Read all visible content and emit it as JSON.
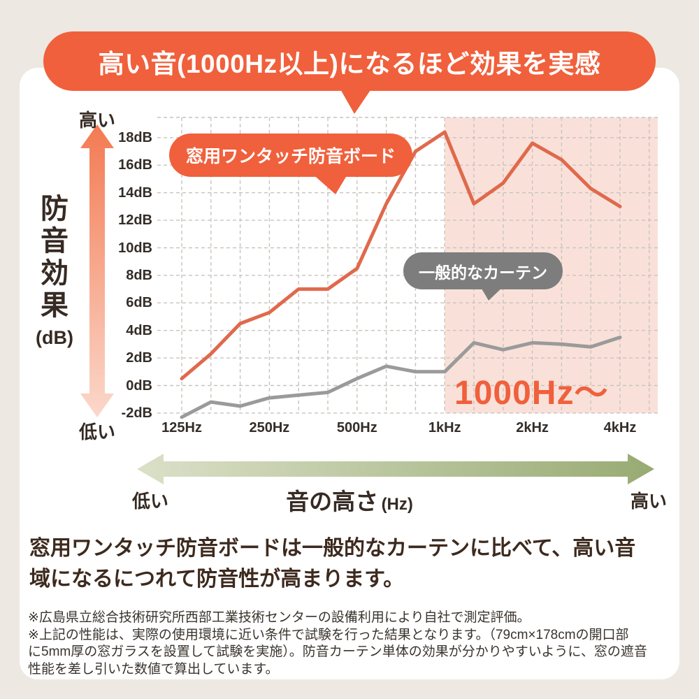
{
  "title_banner": {
    "text": "高い音(1000Hz以上)になるほど効果を実感",
    "bg_color": "#f0603c",
    "text_color": "#ffffff"
  },
  "y_axis": {
    "label_vertical": "防音効果",
    "label_unit": "(dB)",
    "top_label": "高い",
    "bottom_label": "低い",
    "ticks": [
      "18dB",
      "16dB",
      "14dB",
      "12dB",
      "10dB",
      "8dB",
      "6dB",
      "4dB",
      "2dB",
      "0dB",
      "-2dB"
    ]
  },
  "x_axis": {
    "major_labels": [
      "125Hz",
      "250Hz",
      "500Hz",
      "1kHz",
      "2kHz",
      "4kHz"
    ],
    "arrow_left_label": "低い",
    "arrow_center_label": "音の高さ",
    "arrow_center_unit": "(Hz)",
    "arrow_right_label": "高い"
  },
  "chart_data": {
    "type": "line",
    "title": "",
    "xlabel": "音の高さ (Hz)",
    "ylabel": "防音効果 (dB)",
    "x_scale": "log-one-third-octave",
    "x_categories": [
      "125Hz",
      "160Hz",
      "200Hz",
      "250Hz",
      "315Hz",
      "400Hz",
      "500Hz",
      "630Hz",
      "800Hz",
      "1kHz",
      "1.25kHz",
      "1.6kHz",
      "2kHz",
      "2.5kHz",
      "3.15kHz",
      "4kHz"
    ],
    "ylim": [
      -2,
      18
    ],
    "grid": "dashed",
    "series": [
      {
        "name": "窓用ワンタッチ防音ボード",
        "color": "#e0694c",
        "values": [
          0.5,
          2.3,
          4.5,
          5.3,
          7.0,
          7.0,
          8.5,
          13.2,
          17.0,
          18.4,
          13.2,
          14.7,
          17.6,
          16.4,
          14.3,
          13.0
        ]
      },
      {
        "name": "一般的なカーテン",
        "color": "#9a9a9a",
        "values": [
          -2.3,
          -1.2,
          -1.5,
          -0.9,
          -0.7,
          -0.5,
          0.5,
          1.4,
          1.0,
          1.0,
          3.1,
          2.6,
          3.1,
          3.0,
          2.8,
          3.5
        ]
      }
    ],
    "highlight_region": {
      "from_index": 9,
      "from_label": "1kHz",
      "label": "1000Hz〜",
      "fill_color": "#f9e1da",
      "label_color": "#f0603c"
    }
  },
  "series_bubbles": {
    "board_bg": "#f0603c",
    "curtain_bg": "#7d7d7d"
  },
  "description_lines": [
    "窓用ワンタッチ防音ボードは一般的なカーテンに比べて、高い音",
    "域になるにつれて防音性が高まります。"
  ],
  "footnote_lines": [
    "※広島県立総合技術研究所西部工業技術センターの設備利用により自社で測定評価。",
    "※上記の性能は、実際の使用環境に近い条件で試験を行った結果となります。（79cm×178cmの開口部",
    "に5mm厚の窓ガラスを設置して試験を実施）。防音カーテン単体の効果が分かりやすいように、窓の遮音",
    "性能を差し引いた数値で算出しています。"
  ]
}
